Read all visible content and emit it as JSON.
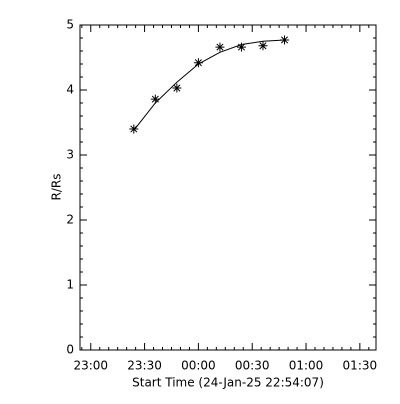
{
  "chart_data": {
    "type": "scatter",
    "xlabel": "Start Time (24-Jan-25 22:54:07)",
    "ylabel": "R/Rs",
    "x": [
      -36,
      -24,
      -12,
      0,
      12,
      24,
      36,
      48
    ],
    "series": [
      {
        "values": [
          3.4,
          3.86,
          4.03,
          4.42,
          4.66,
          4.66,
          4.68,
          4.77
        ],
        "color": "#000000",
        "marker": "asterisk"
      },
      {
        "values": [
          3.38,
          3.8,
          4.12,
          4.4,
          4.58,
          4.7,
          4.75,
          4.77
        ],
        "color": "#000000",
        "marker": "line"
      }
    ],
    "xlim": [
      -66,
      99
    ],
    "xticks": [
      {
        "value": -60,
        "label": "23:00"
      },
      {
        "value": -30,
        "label": "23:30"
      },
      {
        "value": 0,
        "label": "00:00"
      },
      {
        "value": 30,
        "label": "00:30"
      },
      {
        "value": 60,
        "label": "01:00"
      },
      {
        "value": 90,
        "label": "01:30"
      }
    ],
    "ylim": [
      0,
      5
    ],
    "yticks": [
      0,
      1,
      2,
      3,
      4,
      5
    ],
    "x_minor": 6,
    "y_minor": 5
  }
}
